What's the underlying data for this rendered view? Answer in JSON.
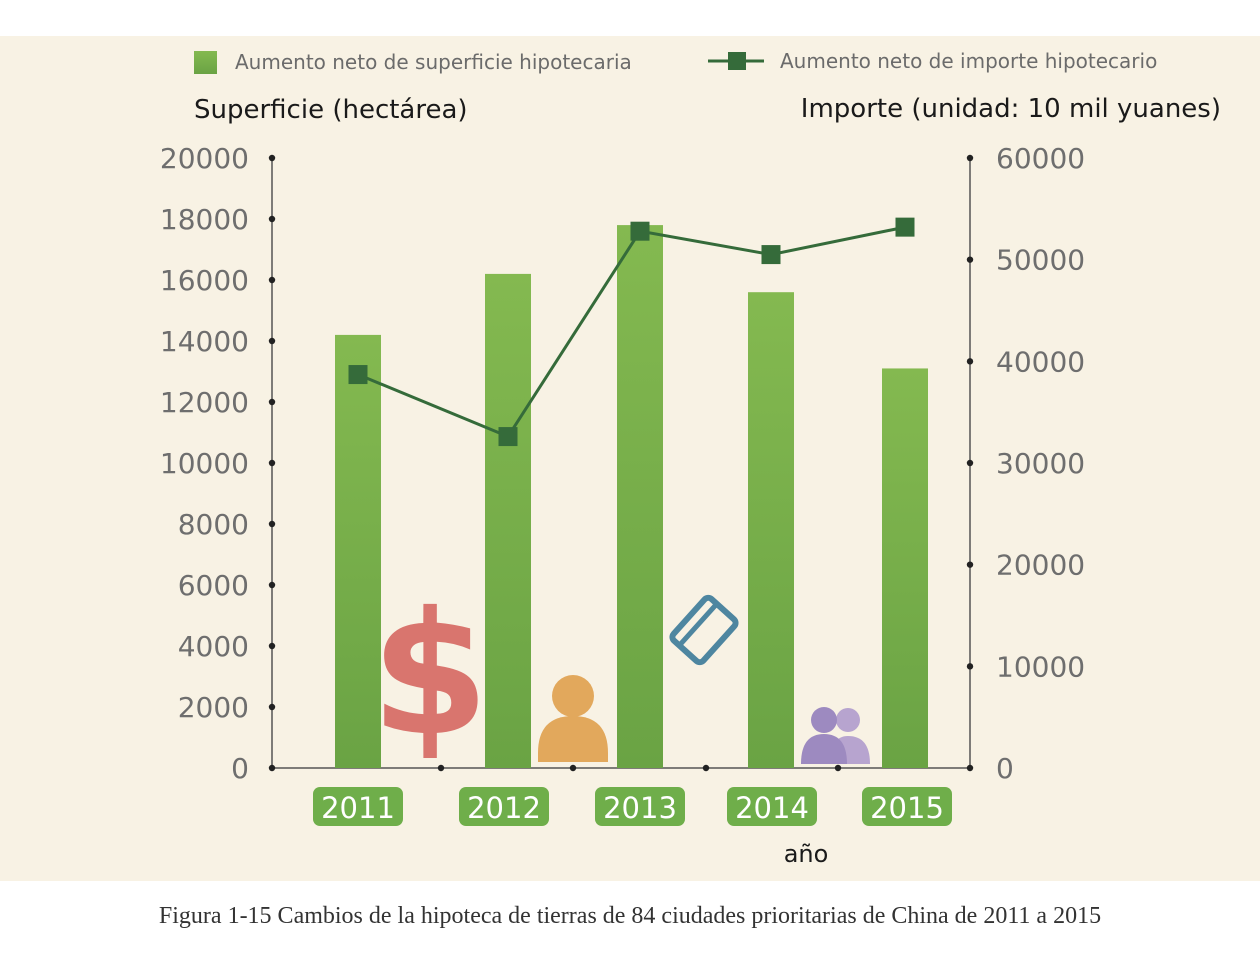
{
  "chart_data": {
    "type": "bar",
    "categories": [
      "2011",
      "2012",
      "2013",
      "2014",
      "2015"
    ],
    "series": [
      {
        "name": "Aumento neto de superficie hipotecaria",
        "type": "bar",
        "axis": "left",
        "color": "#7cb24e",
        "values": [
          14200,
          16200,
          17800,
          15600,
          13100
        ]
      },
      {
        "name": "Aumento neto de importe hipotecario",
        "type": "line",
        "axis": "right",
        "color": "#356b3a",
        "values": [
          38700,
          32600,
          52800,
          50500,
          53200
        ]
      }
    ],
    "ylabel_left": "Superficie (hectárea)",
    "ylabel_right": "Importe (unidad: 10 mil yuanes)",
    "xlabel": "año",
    "ylim_left": [
      0,
      20000
    ],
    "ylim_right": [
      0,
      60000
    ],
    "yticks_left": [
      0,
      2000,
      4000,
      6000,
      8000,
      10000,
      12000,
      14000,
      16000,
      18000,
      20000
    ],
    "yticks_right": [
      0,
      10000,
      20000,
      30000,
      40000,
      50000,
      60000
    ],
    "grid": false,
    "legend_position": "top"
  },
  "caption": "Figura 1-15 Cambios de la hipoteca de tierras de 84 ciudades prioritarias de China de 2011 a 2015",
  "colors": {
    "background": "#f8f2e4",
    "bar": "#7cb24e",
    "line": "#356b3a",
    "category_badge": "#6fae4a",
    "axis": "#333333"
  },
  "icons": [
    "dollar-sign-icon",
    "person-icon",
    "credit-card-icon",
    "people-icon"
  ]
}
